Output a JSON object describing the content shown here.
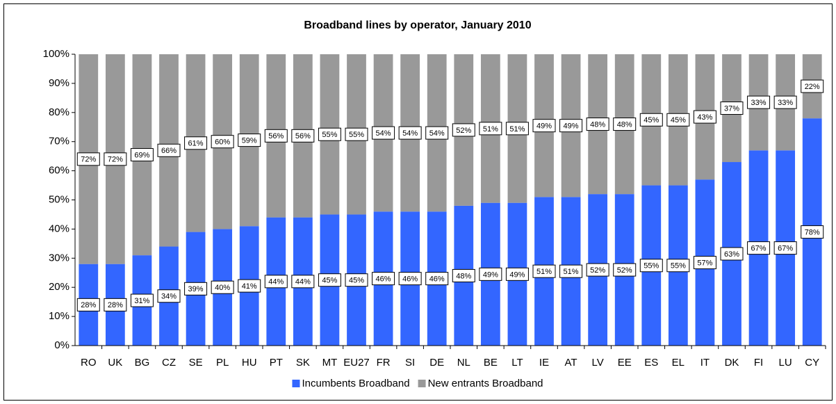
{
  "chart_data": {
    "type": "stacked_bar",
    "title": "Broadband lines by operator, January 2010",
    "categories": [
      "RO",
      "UK",
      "BG",
      "CZ",
      "SE",
      "PL",
      "HU",
      "PT",
      "SK",
      "MT",
      "EU27",
      "FR",
      "SI",
      "DE",
      "NL",
      "BE",
      "LT",
      "IE",
      "AT",
      "LV",
      "EE",
      "ES",
      "EL",
      "IT",
      "DK",
      "FI",
      "LU",
      "CY"
    ],
    "series": [
      {
        "name": "Incumbents Broadband",
        "color": "#3366ff",
        "values": [
          28,
          28,
          31,
          34,
          39,
          40,
          41,
          44,
          44,
          45,
          45,
          46,
          46,
          46,
          48,
          49,
          49,
          51,
          51,
          52,
          52,
          55,
          55,
          57,
          63,
          67,
          67,
          78
        ],
        "value_labels": [
          "28%",
          "28%",
          "31%",
          "34%",
          "39%",
          "40%",
          "41%",
          "44%",
          "44%",
          "45%",
          "45%",
          "46%",
          "46%",
          "46%",
          "48%",
          "49%",
          "49%",
          "51%",
          "51%",
          "52%",
          "52%",
          "55%",
          "55%",
          "57%",
          "63%",
          "67%",
          "67%",
          "78%"
        ]
      },
      {
        "name": "New entrants Broadband",
        "color": "#999999",
        "values": [
          72,
          72,
          69,
          66,
          61,
          60,
          59,
          56,
          56,
          55,
          55,
          54,
          54,
          54,
          52,
          51,
          51,
          49,
          49,
          48,
          48,
          45,
          45,
          43,
          37,
          33,
          33,
          22
        ],
        "value_labels": [
          "72%",
          "72%",
          "69%",
          "66%",
          "61%",
          "60%",
          "59%",
          "56%",
          "56%",
          "55%",
          "55%",
          "54%",
          "54%",
          "54%",
          "52%",
          "51%",
          "51%",
          "49%",
          "49%",
          "48%",
          "48%",
          "45%",
          "45%",
          "43%",
          "37%",
          "33%",
          "33%",
          "22%"
        ]
      }
    ],
    "ylim": [
      0,
      100
    ],
    "yticks": [
      {
        "value": 0,
        "label": "0%"
      },
      {
        "value": 10,
        "label": "10%"
      },
      {
        "value": 20,
        "label": "20%"
      },
      {
        "value": 30,
        "label": "30%"
      },
      {
        "value": 40,
        "label": "40%"
      },
      {
        "value": 50,
        "label": "50%"
      },
      {
        "value": 60,
        "label": "60%"
      },
      {
        "value": 70,
        "label": "70%"
      },
      {
        "value": 80,
        "label": "80%"
      },
      {
        "value": 90,
        "label": "90%"
      },
      {
        "value": 100,
        "label": "100%"
      }
    ],
    "legend": "bottom"
  }
}
